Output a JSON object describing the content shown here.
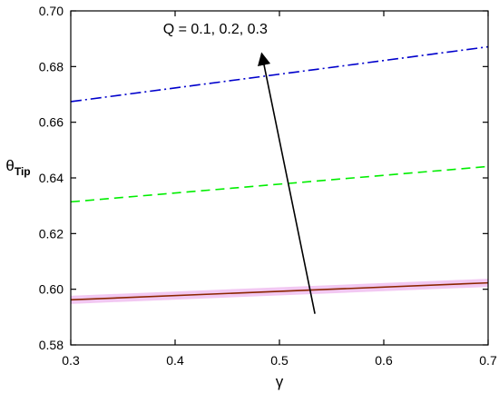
{
  "chart_data": {
    "type": "line",
    "title": "",
    "xlabel": "γ",
    "ylabel": {
      "base": "θ",
      "subscript": "Tip"
    },
    "xlim": [
      0.3,
      0.7
    ],
    "ylim": [
      0.58,
      0.7
    ],
    "x_ticks": [
      0.3,
      0.4,
      0.5,
      0.6,
      0.7
    ],
    "x_tick_labels": [
      "0.3",
      "0.4",
      "0.5",
      "0.6",
      "0.7"
    ],
    "y_ticks": [
      0.58,
      0.6,
      0.62,
      0.64,
      0.66,
      0.68,
      0.7
    ],
    "y_tick_labels": [
      "0.58",
      "0.60",
      "0.62",
      "0.64",
      "0.66",
      "0.68",
      "0.70"
    ],
    "grid": false,
    "legend": "none",
    "series": [
      {
        "x": [
          0.3,
          0.7
        ],
        "y": [
          0.5962,
          0.6023
        ],
        "color": "#8b2500",
        "style": "solid",
        "band_color": "#f2c8f2"
      },
      {
        "x": [
          0.3,
          0.7
        ],
        "y": [
          0.6314,
          0.6441
        ],
        "color": "#00ee00",
        "style": "dashed"
      },
      {
        "x": [
          0.3,
          0.7
        ],
        "y": [
          0.6674,
          0.6871
        ],
        "color": "#0000cc",
        "style": "dash-dot"
      }
    ],
    "annotation": {
      "text": "Q = 0.1, 0.2, 0.3",
      "arrow_from": [
        0.534,
        0.5912
      ],
      "arrow_to": [
        0.483,
        0.6847
      ],
      "text_anchor_point": [
        0.458,
        0.6918
      ]
    }
  }
}
